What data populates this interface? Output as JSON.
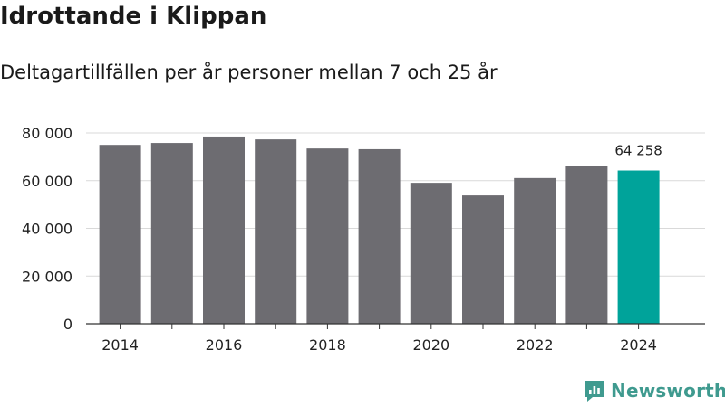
{
  "header": {
    "title": "Idrottande i Klippan",
    "subtitle": "Deltagartillfällen per år personer mellan 7 och 25 år"
  },
  "brand": {
    "name": "Newsworthy",
    "icon": "newsworthy-logo-icon"
  },
  "colors": {
    "bar": "#6d6c71",
    "highlight": "#00a39a",
    "grid": "#d9d9d9",
    "axis": "#333333",
    "text": "#222222"
  },
  "chart_data": {
    "type": "bar",
    "title": "Idrottande i Klippan",
    "subtitle": "Deltagartillfällen per år personer mellan 7 och 25 år",
    "xlabel": "",
    "ylabel": "",
    "categories": [
      "2014",
      "2015",
      "2016",
      "2017",
      "2018",
      "2019",
      "2020",
      "2021",
      "2022",
      "2023",
      "2024"
    ],
    "values": [
      75000,
      75800,
      78500,
      77300,
      73500,
      73200,
      59100,
      53800,
      61100,
      66000,
      64258
    ],
    "highlight_index": 10,
    "highlight_label": "64 258",
    "ylim": [
      0,
      80000
    ],
    "yticks": [
      0,
      20000,
      40000,
      60000,
      80000
    ],
    "ytick_labels": [
      "0",
      "20 000",
      "40 000",
      "60 000",
      "80 000"
    ],
    "xtick_labels": [
      "2014",
      "2016",
      "2018",
      "2020",
      "2022",
      "2024"
    ],
    "grid": true
  }
}
